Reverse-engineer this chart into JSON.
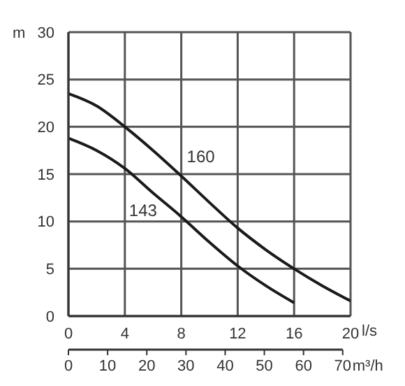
{
  "chart_data": {
    "type": "line",
    "ylabel": "m",
    "xlabel": "l/s",
    "x2label": "m³/h",
    "xlim": [
      0,
      20
    ],
    "xticks": [
      0,
      4,
      8,
      12,
      16,
      20
    ],
    "ylim": [
      0,
      30
    ],
    "yticks": [
      0,
      5,
      10,
      15,
      20,
      25,
      30
    ],
    "x2lim": [
      0,
      72
    ],
    "x2ticks": [
      0,
      10,
      20,
      30,
      40,
      50,
      60,
      70
    ],
    "grid": true,
    "series": [
      {
        "name": "160",
        "color": "#1a1a1a",
        "x": [
          0,
          2,
          4,
          6,
          8,
          10,
          12,
          14,
          16,
          18,
          20
        ],
        "values": [
          23.5,
          22.2,
          20,
          17.5,
          14.8,
          12,
          9.3,
          7,
          5,
          3.2,
          1.6
        ]
      },
      {
        "name": "143",
        "color": "#1a1a1a",
        "x": [
          0,
          2,
          4,
          6,
          8,
          10,
          12,
          14,
          16
        ],
        "values": [
          18.8,
          17.5,
          15.6,
          13,
          10.5,
          7.8,
          5.3,
          3.2,
          1.4
        ]
      }
    ]
  }
}
